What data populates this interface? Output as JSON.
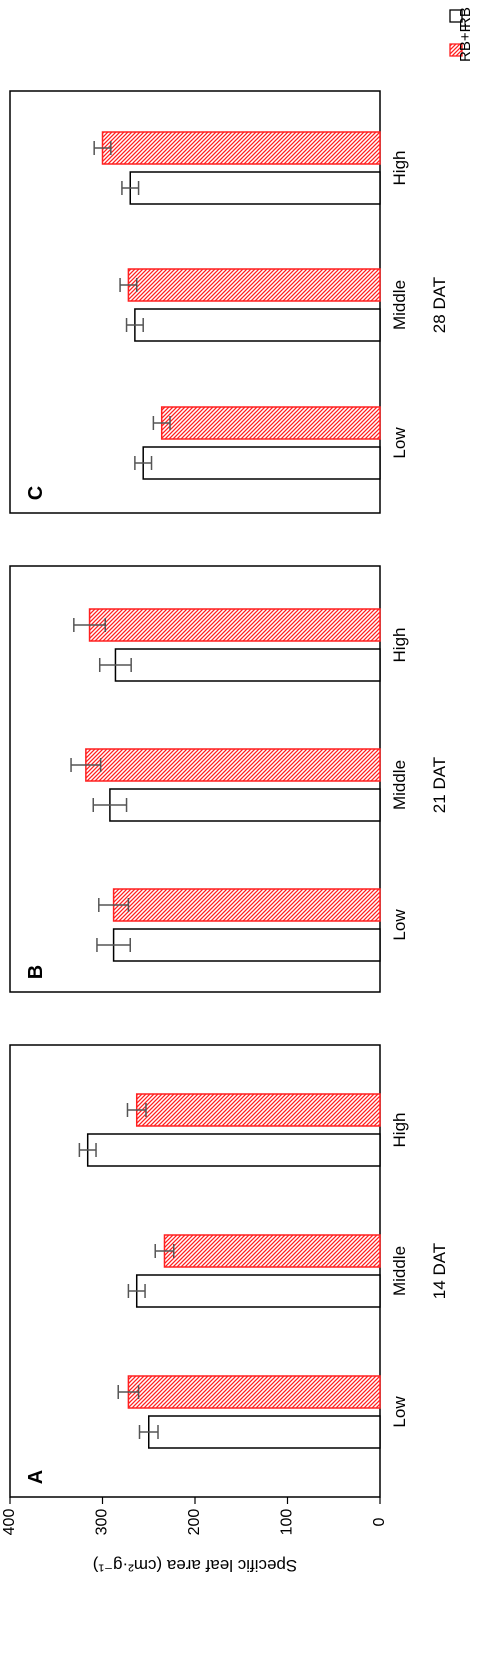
{
  "chart_data": {
    "type": "bar",
    "orientation": "horizontal",
    "ylabel": "Specific leaf area (cm²·g⁻¹)",
    "ylim": [
      0,
      400
    ],
    "yticks": [
      0,
      100,
      200,
      300,
      400
    ],
    "grid": false,
    "legend": {
      "placement": "top-right",
      "entries": [
        {
          "name": "RB",
          "color": "#000000",
          "pattern": "none"
        },
        {
          "name": "RB+F",
          "color": "#ff0000",
          "pattern": "hatch"
        }
      ]
    },
    "panels": [
      {
        "panel_label": "A",
        "xlabel": "14 DAT",
        "categories": [
          "Low",
          "Middle",
          "High"
        ],
        "series": [
          {
            "name": "RB",
            "values": [
              250,
              263,
              316
            ],
            "errors": [
              10,
              9,
              9
            ]
          },
          {
            "name": "RB+F",
            "values": [
              272,
              233,
              263
            ],
            "errors": [
              11,
              10,
              10
            ]
          }
        ]
      },
      {
        "panel_label": "B",
        "xlabel": "21 DAT",
        "categories": [
          "Low",
          "Middle",
          "High"
        ],
        "series": [
          {
            "name": "RB",
            "values": [
              288,
              292,
              286
            ],
            "errors": [
              18,
              18,
              17
            ]
          },
          {
            "name": "RB+F",
            "values": [
              288,
              318,
              314
            ],
            "errors": [
              16,
              16,
              17
            ]
          }
        ]
      },
      {
        "panel_label": "C",
        "xlabel": "28 DAT",
        "categories": [
          "Low",
          "Middle",
          "High"
        ],
        "series": [
          {
            "name": "RB",
            "values": [
              256,
              265,
              270
            ],
            "errors": [
              9,
              9,
              9
            ]
          },
          {
            "name": "RB+F",
            "values": [
              236,
              272,
              300
            ],
            "errors": [
              9,
              9,
              9
            ]
          }
        ]
      }
    ]
  }
}
